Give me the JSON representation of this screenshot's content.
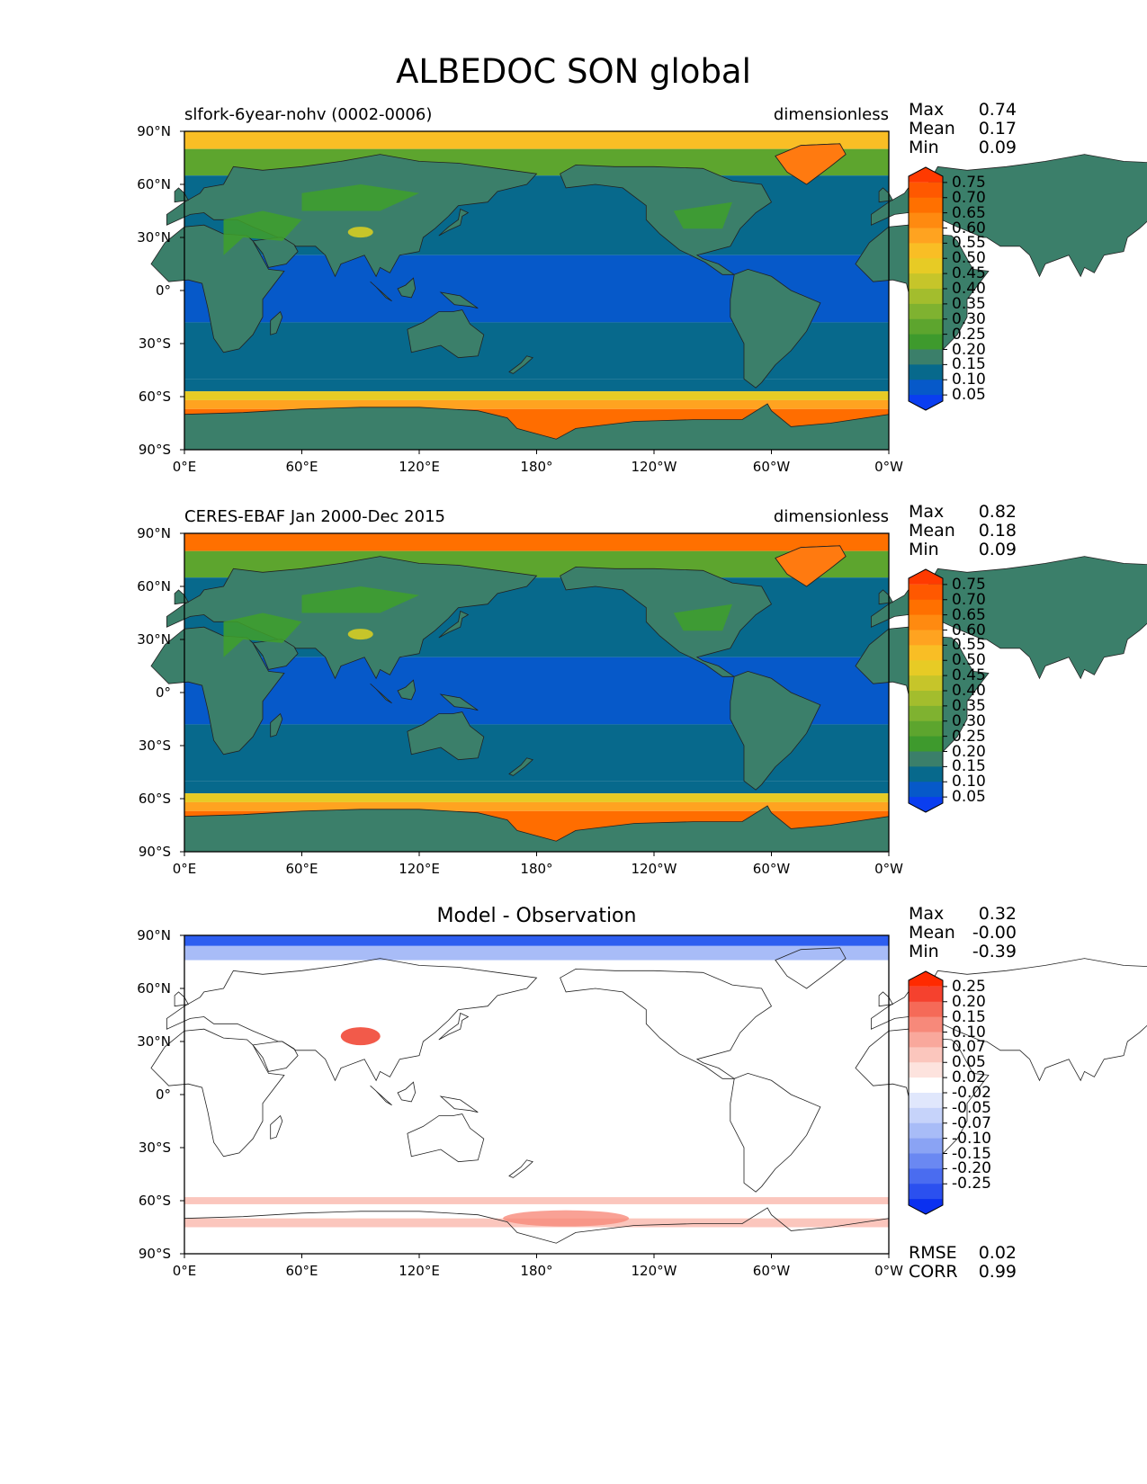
{
  "title": "ALBEDOC SON global",
  "lon_ticks": [
    "0°E",
    "60°E",
    "120°E",
    "180°",
    "120°W",
    "60°W",
    "0°W"
  ],
  "lat_ticks": [
    "90°N",
    "60°N",
    "30°N",
    "0°",
    "30°S",
    "60°S",
    "90°S"
  ],
  "colors": {
    "ocean_tropics": "#0659c9",
    "ocean_mid": "#07698c",
    "land": "#3b7f6a",
    "vegetation": "#3fa02a",
    "sea_ice": "#ff6d00",
    "greenland": "#ff7a10",
    "diff_positive": "#f25a4a",
    "diff_negative": "#2d5ef0"
  },
  "chart_data": [
    {
      "type": "heatmap",
      "left_title": "slfork-6year-nohv (0002-0006)",
      "right_title": "dimensionless",
      "stats": [
        {
          "label": "Max",
          "value": "0.74"
        },
        {
          "label": "Mean",
          "value": "0.17"
        },
        {
          "label": "Min",
          "value": "0.09"
        }
      ],
      "colorbar": {
        "labels": [
          "0.75",
          "0.70",
          "0.65",
          "0.60",
          "0.55",
          "0.50",
          "0.45",
          "0.40",
          "0.35",
          "0.30",
          "0.25",
          "0.20",
          "0.15",
          "0.10",
          "0.05"
        ],
        "colors": [
          "#ff3a00",
          "#ff5800",
          "#ff7000",
          "#ff8a10",
          "#ffa320",
          "#f9be25",
          "#e7cb25",
          "#c6c52a",
          "#a3bd2d",
          "#7fb230",
          "#5da52e",
          "#3e9a2d",
          "#3b7f6a",
          "#07698c",
          "#0659c9",
          "#0a3ef0"
        ],
        "ylim": [
          0.05,
          0.75
        ]
      },
      "xlim": [
        0,
        360
      ],
      "ylim": [
        -90,
        90
      ]
    },
    {
      "type": "heatmap",
      "left_title": "CERES-EBAF Jan 2000-Dec 2015",
      "right_title": "dimensionless",
      "stats": [
        {
          "label": "Max",
          "value": "0.82"
        },
        {
          "label": "Mean",
          "value": "0.18"
        },
        {
          "label": "Min",
          "value": "0.09"
        }
      ],
      "colorbar": {
        "labels": [
          "0.75",
          "0.70",
          "0.65",
          "0.60",
          "0.55",
          "0.50",
          "0.45",
          "0.40",
          "0.35",
          "0.30",
          "0.25",
          "0.20",
          "0.15",
          "0.10",
          "0.05"
        ],
        "colors": [
          "#ff3a00",
          "#ff5800",
          "#ff7000",
          "#ff8a10",
          "#ffa320",
          "#f9be25",
          "#e7cb25",
          "#c6c52a",
          "#a3bd2d",
          "#7fb230",
          "#5da52e",
          "#3e9a2d",
          "#3b7f6a",
          "#07698c",
          "#0659c9",
          "#0a3ef0"
        ],
        "ylim": [
          0.05,
          0.75
        ]
      },
      "xlim": [
        0,
        360
      ],
      "ylim": [
        -90,
        90
      ]
    },
    {
      "type": "heatmap",
      "center_title": "Model - Observation",
      "stats": [
        {
          "label": "Max",
          "value": "0.32"
        },
        {
          "label": "Mean",
          "value": "-0.00"
        },
        {
          "label": "Min",
          "value": "-0.39"
        }
      ],
      "colorbar": {
        "labels": [
          "0.25",
          "0.20",
          "0.15",
          "0.10",
          "0.07",
          "0.05",
          "0.02",
          "-0.02",
          "-0.05",
          "-0.07",
          "-0.10",
          "-0.15",
          "-0.20",
          "-0.25"
        ],
        "colors": [
          "#ff2a00",
          "#f5412e",
          "#f56a58",
          "#f7897a",
          "#f9a89c",
          "#fbc6bd",
          "#fde3de",
          "#ffffff",
          "#e0e7fc",
          "#c6d3fa",
          "#a8bcf7",
          "#8aa3f4",
          "#6a88f2",
          "#4a6cf0",
          "#2b50ef",
          "#0a30f0"
        ],
        "ylim": [
          -0.25,
          0.25
        ]
      },
      "extra_stats": [
        {
          "label": "RMSE",
          "value": "0.02"
        },
        {
          "label": "CORR",
          "value": "0.99"
        }
      ],
      "xlim": [
        0,
        360
      ],
      "ylim": [
        -90,
        90
      ]
    }
  ]
}
